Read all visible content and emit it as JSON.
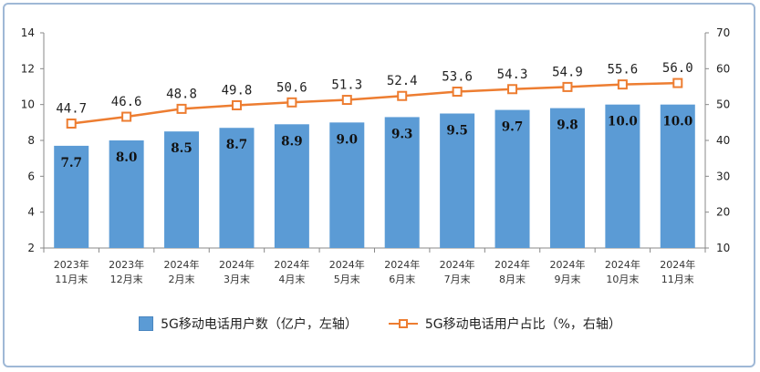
{
  "chart_data": {
    "type": "bar",
    "categories": [
      [
        "2023年",
        "11月末"
      ],
      [
        "2023年",
        "12月末"
      ],
      [
        "2024年",
        "2月末"
      ],
      [
        "2024年",
        "3月末"
      ],
      [
        "2024年",
        "4月末"
      ],
      [
        "2024年",
        "5月末"
      ],
      [
        "2024年",
        "6月末"
      ],
      [
        "2024年",
        "7月末"
      ],
      [
        "2024年",
        "8月末"
      ],
      [
        "2024年",
        "9月末"
      ],
      [
        "2024年",
        "10月末"
      ],
      [
        "2024年",
        "11月末"
      ]
    ],
    "series": [
      {
        "name": "5G移动电话用户数（亿户，左轴）",
        "type": "bar",
        "axis": "left",
        "values": [
          7.7,
          8.0,
          8.5,
          8.7,
          8.9,
          9.0,
          9.3,
          9.5,
          9.7,
          9.8,
          10.0,
          10.0
        ],
        "labels": [
          "7.7",
          "8.0",
          "8.5",
          "8.7",
          "8.9",
          "9.0",
          "9.3",
          "9.5",
          "9.7",
          "9.8",
          "10.0",
          "10.0"
        ],
        "color": "#5b9bd5"
      },
      {
        "name": "5G移动电话用户占比（%，右轴）",
        "type": "line",
        "axis": "right",
        "values": [
          44.7,
          46.6,
          48.8,
          49.8,
          50.6,
          51.3,
          52.4,
          53.6,
          54.3,
          54.9,
          55.6,
          56.0
        ],
        "labels": [
          "44.7",
          "46.6",
          "48.8",
          "49.8",
          "50.6",
          "51.3",
          "52.4",
          "53.6",
          "54.3",
          "54.9",
          "55.6",
          "56.0"
        ],
        "color": "#ed7d31"
      }
    ],
    "y_left": {
      "min": 2,
      "max": 14,
      "ticks": [
        "2",
        "4",
        "6",
        "8",
        "10",
        "12",
        "14"
      ]
    },
    "y_right": {
      "min": 10,
      "max": 70,
      "ticks": [
        "10",
        "20",
        "30",
        "40",
        "50",
        "60",
        "70"
      ]
    },
    "grid": false,
    "legend_position": "bottom"
  },
  "legend": {
    "bar_label": "5G移动电话用户数（亿户，左轴）",
    "line_label": "5G移动电话用户占比（%，右轴）"
  },
  "colors": {
    "frame": "#9fb8d6",
    "bar": "#5b9bd5",
    "line": "#ed7d31"
  }
}
